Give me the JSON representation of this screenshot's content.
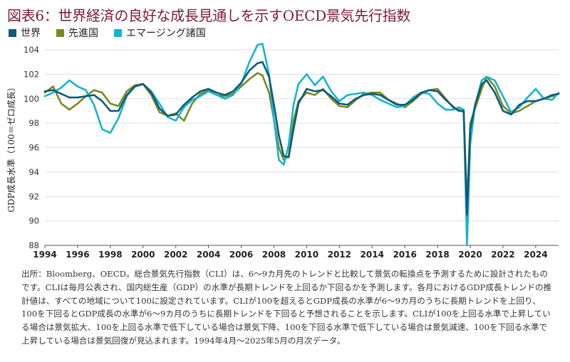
{
  "header": {
    "title": "図表6：世界経済の良好な成長見通しを示すOECD景気先行指数"
  },
  "chart_data": {
    "type": "line",
    "title": "図表6：世界経済の良好な成長見通しを示すOECD景気先行指数",
    "ylabel": "GDP成長水準（100＝ゼロ成長）",
    "xlabel": "",
    "ylim": [
      88,
      104
    ],
    "xlim": [
      1994,
      2025.4
    ],
    "yticks": [
      88,
      90,
      92,
      94,
      96,
      98,
      100,
      102,
      104
    ],
    "xticks": [
      "1994",
      "1996",
      "1998",
      "2000",
      "2002",
      "2004",
      "2006",
      "2008",
      "2010",
      "2012",
      "2014",
      "2016",
      "2018",
      "2020",
      "2022",
      "2024"
    ],
    "grid": "horizontal",
    "legend_position": "top-left",
    "series": [
      {
        "name": "世界",
        "color": "#0f5a78",
        "x": [
          1994,
          1994.5,
          1995,
          1995.5,
          1996,
          1996.5,
          1997,
          1997.5,
          1998,
          1998.5,
          1999,
          1999.5,
          2000,
          2000.5,
          2001,
          2001.5,
          2002,
          2002.5,
          2003,
          2003.5,
          2004,
          2004.5,
          2005,
          2005.5,
          2006,
          2006.5,
          2007,
          2007.3,
          2007.7,
          2008,
          2008.3,
          2008.6,
          2008.9,
          2009.2,
          2009.5,
          2010,
          2010.5,
          2011,
          2011.5,
          2012,
          2012.5,
          2013,
          2013.5,
          2014,
          2014.5,
          2015,
          2015.5,
          2016,
          2016.5,
          2017,
          2017.5,
          2018,
          2018.5,
          2019,
          2019.3,
          2019.6,
          2019.8,
          2020.0,
          2020.3,
          2020.7,
          2021,
          2021.5,
          2022,
          2022.5,
          2023,
          2023.5,
          2024,
          2024.5,
          2025,
          2025.4
        ],
        "y": [
          100.6,
          100.7,
          100.4,
          100.1,
          100.1,
          100.2,
          100.3,
          99.8,
          99.0,
          99.0,
          100.3,
          101.0,
          101.2,
          100.5,
          99.2,
          98.6,
          98.7,
          99.5,
          100.1,
          100.6,
          100.8,
          100.5,
          100.3,
          100.6,
          101.3,
          102.3,
          102.9,
          103.0,
          101.8,
          99.5,
          97.0,
          95.3,
          95.2,
          97.5,
          99.6,
          100.8,
          100.6,
          100.7,
          100.2,
          99.6,
          99.5,
          100.0,
          100.3,
          100.4,
          100.3,
          99.9,
          99.5,
          99.5,
          99.9,
          100.5,
          100.7,
          100.6,
          99.9,
          99.3,
          99.0,
          99.0,
          90.5,
          97.5,
          99.5,
          101.2,
          101.5,
          100.5,
          99.0,
          98.7,
          99.5,
          99.8,
          99.8,
          100.0,
          100.3,
          100.4
        ]
      },
      {
        "name": "先進国",
        "color": "#7a8a1e",
        "x": [
          1994,
          1994.5,
          1995,
          1995.5,
          1996,
          1996.5,
          1997,
          1997.5,
          1998,
          1998.5,
          1999,
          1999.5,
          2000,
          2000.5,
          2001,
          2001.5,
          2002,
          2002.5,
          2003,
          2003.5,
          2004,
          2004.5,
          2005,
          2005.5,
          2006,
          2006.5,
          2007,
          2007.3,
          2007.7,
          2008,
          2008.3,
          2008.6,
          2008.9,
          2009.2,
          2009.5,
          2010,
          2010.5,
          2011,
          2011.5,
          2012,
          2012.5,
          2013,
          2013.5,
          2014,
          2014.5,
          2015,
          2015.5,
          2016,
          2016.5,
          2017,
          2017.5,
          2018,
          2018.5,
          2019,
          2019.3,
          2019.6,
          2019.8,
          2020.0,
          2020.3,
          2020.7,
          2021,
          2021.5,
          2022,
          2022.5,
          2023,
          2023.5,
          2024,
          2024.5,
          2025,
          2025.4
        ],
        "y": [
          100.5,
          101.0,
          99.6,
          99.1,
          99.6,
          100.2,
          100.7,
          100.5,
          99.6,
          99.4,
          100.6,
          101.1,
          101.2,
          100.3,
          98.9,
          98.6,
          98.8,
          98.2,
          99.6,
          100.4,
          100.7,
          100.3,
          100.2,
          100.4,
          101.0,
          101.6,
          102.1,
          101.9,
          100.5,
          98.3,
          96.0,
          95.0,
          95.3,
          98.2,
          99.8,
          100.5,
          100.3,
          100.8,
          100.0,
          99.4,
          99.3,
          99.9,
          100.4,
          100.5,
          100.5,
          99.9,
          99.6,
          99.3,
          99.8,
          100.4,
          100.7,
          100.8,
          100.0,
          99.2,
          99.1,
          98.9,
          91.2,
          98.0,
          99.2,
          100.8,
          101.8,
          101.0,
          99.4,
          98.8,
          99.0,
          99.4,
          99.8,
          100.0,
          100.2,
          100.4
        ]
      },
      {
        "name": "エマージング諸国",
        "color": "#16b3d0",
        "x": [
          1994,
          1994.5,
          1995,
          1995.5,
          1996,
          1996.5,
          1997,
          1997.5,
          1998,
          1998.5,
          1999,
          1999.5,
          2000,
          2000.5,
          2001,
          2001.5,
          2002,
          2002.5,
          2003,
          2003.5,
          2004,
          2004.5,
          2005,
          2005.5,
          2006,
          2006.5,
          2007,
          2007.3,
          2007.7,
          2008,
          2008.3,
          2008.6,
          2008.9,
          2009.2,
          2009.5,
          2010,
          2010.5,
          2011,
          2011.5,
          2012,
          2012.5,
          2013,
          2013.5,
          2014,
          2014.5,
          2015,
          2015.5,
          2016,
          2016.5,
          2017,
          2017.5,
          2018,
          2018.5,
          2019,
          2019.3,
          2019.6,
          2019.8,
          2020.0,
          2020.3,
          2020.7,
          2021,
          2021.5,
          2022,
          2022.5,
          2023,
          2023.5,
          2024,
          2024.5,
          2025,
          2025.4
        ],
        "y": [
          100.2,
          100.5,
          100.9,
          101.5,
          101.0,
          100.7,
          99.5,
          97.5,
          97.2,
          98.4,
          100.2,
          101.0,
          101.2,
          100.6,
          99.6,
          98.5,
          98.2,
          99.3,
          99.9,
          100.2,
          100.6,
          100.3,
          100.0,
          100.3,
          101.2,
          103.0,
          104.4,
          104.5,
          102.0,
          98.3,
          95.0,
          94.6,
          96.2,
          99.5,
          101.2,
          102.0,
          101.1,
          101.8,
          100.6,
          99.8,
          100.3,
          100.4,
          100.5,
          100.3,
          99.9,
          99.6,
          99.3,
          99.4,
          100.1,
          100.5,
          100.4,
          99.6,
          99.1,
          99.1,
          99.3,
          99.1,
          88.0,
          96.3,
          99.5,
          101.5,
          101.8,
          101.5,
          100.2,
          98.9,
          99.3,
          100.1,
          100.8,
          100.0,
          99.9,
          100.5
        ]
      }
    ]
  },
  "note": "出所：Bloomberg、OECD。総合景気先行指数（CLI）は、6〜9カ月先のトレンドと比較して景気の転換点を予測するために設計されたものです。CLIは毎月公表され、国内総生産（GDP）の水準が長期トレンドを上回るか下回るかを予測します。各月におけるGDP成長トレンドの推計値は、すべての地域について100に設定されています。CLIが100を超えるとGDP成長の水準が6〜9カ月のうちに長期トレンドを上回り、100を下回るとGDP成長の水準が6〜9カ月のうちに長期トレンドを下回ると予想されることを示します。CLIが100を上回る水準で上昇している場合は景気拡大、100を上回る水準で低下している場合は景気下降、100を下回る水準で低下している場合は景気減速、100を下回る水準で上昇している場合は景気回復が見込まれます。1994年4月〜2025年5月の月次データ。"
}
